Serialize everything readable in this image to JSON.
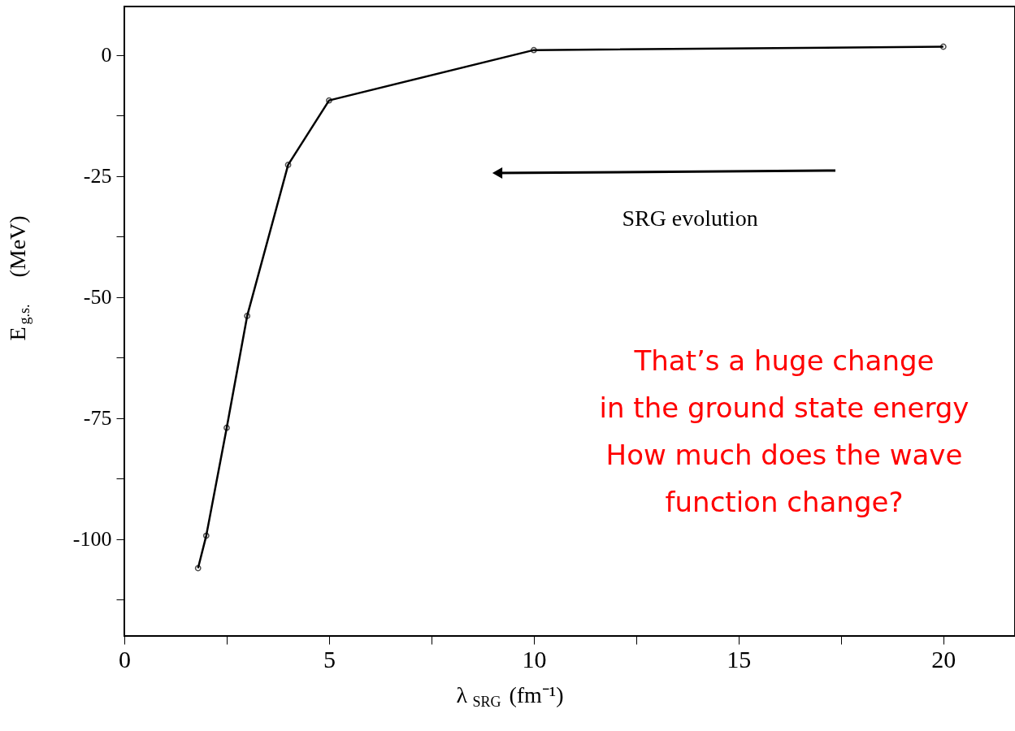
{
  "chart_data": {
    "type": "line",
    "xlabel": "λ$_{SRG}$ (fm⁻¹)",
    "ylabel": "E$_{g.s.}$ (MeV)",
    "x": [
      1.8,
      2,
      2.5,
      3,
      4,
      5,
      10,
      20
    ],
    "series": [
      {
        "color": "#000000",
        "values": [
          -106,
          -99.3,
          -77,
          -53.9,
          -22.7,
          -9.4,
          1.0,
          1.7
        ]
      }
    ],
    "xlim": [
      0,
      21.75
    ],
    "xticks": [
      0,
      {
        "value": 2.5,
        "label": null
      },
      5,
      {
        "value": 7.5,
        "label": null
      },
      10,
      {
        "value": 12.5,
        "label": null
      },
      15,
      {
        "value": 17.5,
        "label": null
      },
      20
    ],
    "ylim": [
      -120,
      10
    ],
    "yticks": [
      {
        "value": -112.5,
        "label": null
      },
      -100,
      {
        "value": -87.5,
        "label": null
      },
      -75,
      {
        "value": -62.5,
        "label": null
      },
      -50,
      {
        "value": -37.5,
        "label": null
      },
      -25,
      {
        "value": -12.5,
        "label": null
      },
      0
    ],
    "annotations": [
      "SRG evolution",
      "That’s a huge change\nin the ground state energy\nHow much does the wave\nfunction change?"
    ],
    "marker": "circle",
    "line_style": "solid",
    "grid": false
  }
}
